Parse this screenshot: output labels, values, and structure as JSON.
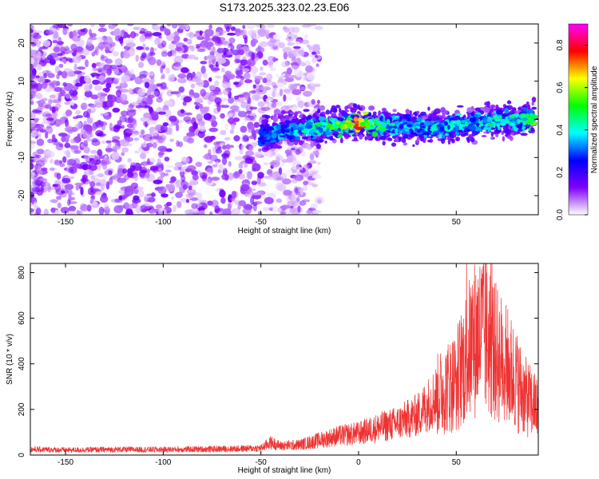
{
  "chart_data": [
    {
      "type": "heatmap",
      "title": "S173.2025.323.02.23.E06",
      "xlabel": "Height of straight line (km)",
      "ylabel": "Frequency (Hz)",
      "xlim": [
        -168,
        92
      ],
      "ylim": [
        -25,
        25
      ],
      "x_ticks": [
        -150,
        -100,
        -50,
        0,
        50
      ],
      "y_ticks": [
        -20,
        -10,
        0,
        10,
        20
      ],
      "colorbar": {
        "label": "Normalized spectral amplitude",
        "range": [
          0.0,
          0.9
        ],
        "ticks": [
          "0.0",
          "0.2",
          "0.4",
          "0.6",
          "0.8"
        ],
        "colors": [
          "#ffffff",
          "#7f00ff",
          "#0000ff",
          "#00ffff",
          "#00ff00",
          "#ffff00",
          "#ff0000",
          "#ff00ff"
        ]
      },
      "signal_band": {
        "x": [
          -50,
          -40,
          -30,
          -20,
          -10,
          0,
          10,
          20,
          30,
          40,
          50,
          60,
          70,
          80,
          90
        ],
        "center_frequency": [
          -4,
          -3,
          -2.5,
          -2,
          -1.5,
          -1,
          -1.5,
          -2,
          -2,
          -2,
          -1.5,
          -1,
          -0.5,
          0,
          0
        ],
        "peak_amplitude": [
          0.3,
          0.4,
          0.45,
          0.5,
          0.6,
          0.9,
          0.6,
          0.4,
          0.4,
          0.45,
          0.45,
          0.45,
          0.5,
          0.5,
          0.6
        ]
      },
      "noise_x_range": [
        -168,
        -20
      ]
    },
    {
      "type": "line",
      "xlabel": "Height of straight line (km)",
      "ylabel": "SNR (10 * v/v)",
      "xlim": [
        -168,
        92
      ],
      "ylim": [
        0,
        840
      ],
      "x_ticks": [
        -150,
        -100,
        -50,
        0,
        50
      ],
      "y_ticks": [
        0,
        200,
        400,
        600,
        800
      ],
      "color": "#ee3333",
      "x": [
        -168,
        -150,
        -125,
        -100,
        -75,
        -60,
        -50,
        -45,
        -40,
        -30,
        -20,
        -10,
        0,
        10,
        20,
        30,
        40,
        50,
        55,
        60,
        65,
        70,
        75,
        80,
        85,
        92
      ],
      "y": [
        25,
        22,
        24,
        24,
        26,
        28,
        30,
        55,
        40,
        45,
        65,
        85,
        95,
        120,
        140,
        175,
        260,
        330,
        430,
        520,
        540,
        450,
        400,
        340,
        260,
        200
      ]
    }
  ]
}
